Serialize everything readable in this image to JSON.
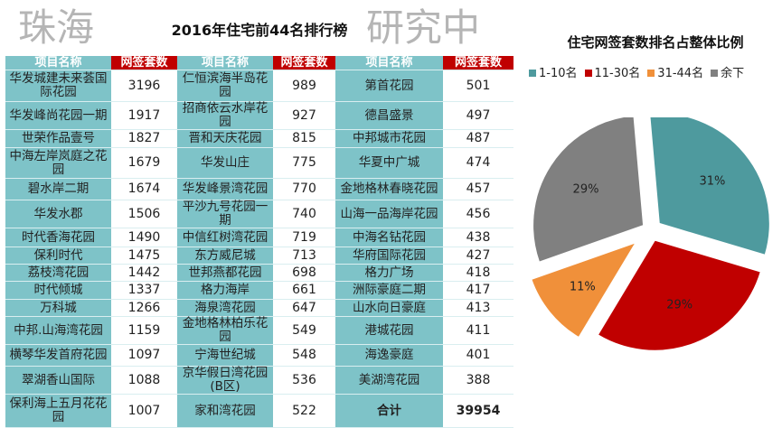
{
  "table": {
    "title": "2016年住宅前44名排行榜",
    "headers": [
      "项目名称",
      "网签套数",
      "项目名称",
      "网签套数",
      "项目名称",
      "网签套数"
    ],
    "rows": [
      [
        "华发城建未来荟国际花园",
        "3196",
        "仁恒滨海半岛花园",
        "989",
        "第首花园",
        "501"
      ],
      [
        "华发峰尚花园一期",
        "1917",
        "招商依云水岸花园",
        "927",
        "德昌盛景",
        "497"
      ],
      [
        "世荣作品壹号",
        "1827",
        "晋和天庆花园",
        "815",
        "中邦城市花园",
        "487"
      ],
      [
        "中海左岸岚庭之花园",
        "1679",
        "华发山庄",
        "775",
        "华夏中广城",
        "474"
      ],
      [
        "碧水岸二期",
        "1674",
        "华发峰景湾花园",
        "770",
        "金地格林春晓花园",
        "457"
      ],
      [
        "华发水郡",
        "1506",
        "平沙九号花园一期",
        "740",
        "山海一品海岸花园",
        "456"
      ],
      [
        "时代香海花园",
        "1490",
        "中信红树湾花园",
        "719",
        "中海名钻花园",
        "438"
      ],
      [
        "保利时代",
        "1475",
        "东方威尼城",
        "713",
        "华府国际花园",
        "427"
      ],
      [
        "荔枝湾花园",
        "1442",
        "世邦燕都花园",
        "698",
        "格力广场",
        "418"
      ],
      [
        "时代倾城",
        "1337",
        "格力海岸",
        "661",
        "洲际豪庭二期",
        "417"
      ],
      [
        "万科城",
        "1266",
        "海泉湾花园",
        "647",
        "山水向日豪庭",
        "413"
      ],
      [
        "中邦.山海湾花园",
        "1159",
        "金地格林柏乐花园",
        "549",
        "港城花园",
        "411"
      ],
      [
        "横琴华发首府花园",
        "1097",
        "宁海世纪城",
        "548",
        "海逸豪庭",
        "401"
      ],
      [
        "翠湖香山国际",
        "1088",
        "京华假日湾花园(B区)",
        "536",
        "美湖湾花园",
        "388"
      ],
      [
        "保利海上五月花花园",
        "1007",
        "家和湾花园",
        "522",
        "合计",
        "39954"
      ]
    ]
  },
  "watermark": [
    "珠海",
    "研究中"
  ],
  "chart_data": {
    "type": "pie",
    "title": "住宅网签套数排名占整体比例",
    "legend_position": "top",
    "categories": [
      "1-10名",
      "11-30名",
      "31-44名",
      "余下"
    ],
    "values": [
      31,
      29,
      11,
      29
    ],
    "labels": [
      "31%",
      "29%",
      "11%",
      "29%"
    ],
    "colors": [
      "#4E9A9E",
      "#C00000",
      "#F0903A",
      "#808080"
    ]
  }
}
